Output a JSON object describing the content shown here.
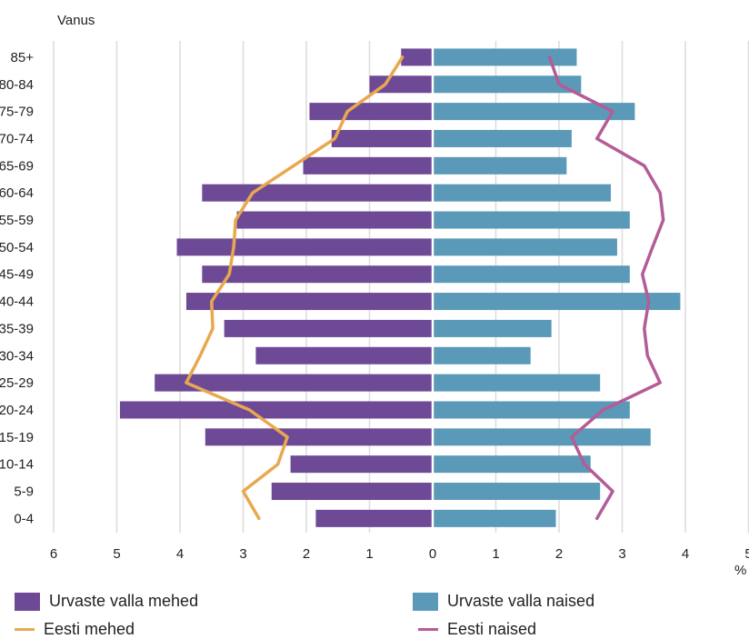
{
  "chart_data": {
    "type": "bar",
    "orientation": "horizontal-population-pyramid",
    "ylabel": "Vanus",
    "xunit": "%",
    "categories": [
      "85+",
      "80-84",
      "75-79",
      "70-74",
      "65-69",
      "60-64",
      "55-59",
      "50-54",
      "45-49",
      "40-44",
      "35-39",
      "30-34",
      "25-29",
      "20-24",
      "15-19",
      "10-14",
      "5-9",
      "0-4"
    ],
    "xlim": [
      -6,
      5
    ],
    "x_ticks": [
      -6,
      -5,
      -4,
      -3,
      -2,
      -1,
      0,
      1,
      2,
      3,
      4,
      5
    ],
    "x_tick_labels": [
      "6",
      "5",
      "4",
      "3",
      "2",
      "1",
      "0",
      "1",
      "2",
      "3",
      "4",
      "5"
    ],
    "grid": "vertical",
    "legend_position": "bottom",
    "series": [
      {
        "name": "Urvaste valla mehed",
        "kind": "bar",
        "side": "left",
        "color": "#6e4a96",
        "values": [
          0.5,
          1.0,
          1.95,
          1.6,
          2.05,
          3.65,
          3.1,
          4.05,
          3.65,
          3.9,
          3.3,
          2.8,
          4.4,
          4.95,
          3.6,
          2.25,
          2.55,
          1.85
        ]
      },
      {
        "name": "Urvaste valla naised",
        "kind": "bar",
        "side": "right",
        "color": "#5a9ab8",
        "values": [
          2.28,
          2.35,
          3.2,
          2.2,
          2.12,
          2.82,
          3.12,
          2.92,
          3.12,
          3.92,
          1.88,
          1.55,
          2.65,
          3.12,
          3.45,
          2.5,
          2.65,
          1.95
        ]
      },
      {
        "name": "Eesti mehed",
        "kind": "line",
        "side": "left",
        "color": "#e8a84e",
        "values": [
          0.48,
          0.75,
          1.35,
          1.55,
          2.2,
          2.85,
          3.12,
          3.15,
          3.22,
          3.5,
          3.48,
          3.68,
          3.9,
          2.9,
          2.3,
          2.45,
          3.0,
          2.75
        ]
      },
      {
        "name": "Eesti naised",
        "kind": "line",
        "side": "right",
        "color": "#b45c98",
        "values": [
          1.85,
          2.0,
          2.85,
          2.6,
          3.35,
          3.6,
          3.65,
          3.48,
          3.32,
          3.42,
          3.35,
          3.4,
          3.6,
          2.7,
          2.2,
          2.4,
          2.85,
          2.6
        ]
      }
    ]
  }
}
